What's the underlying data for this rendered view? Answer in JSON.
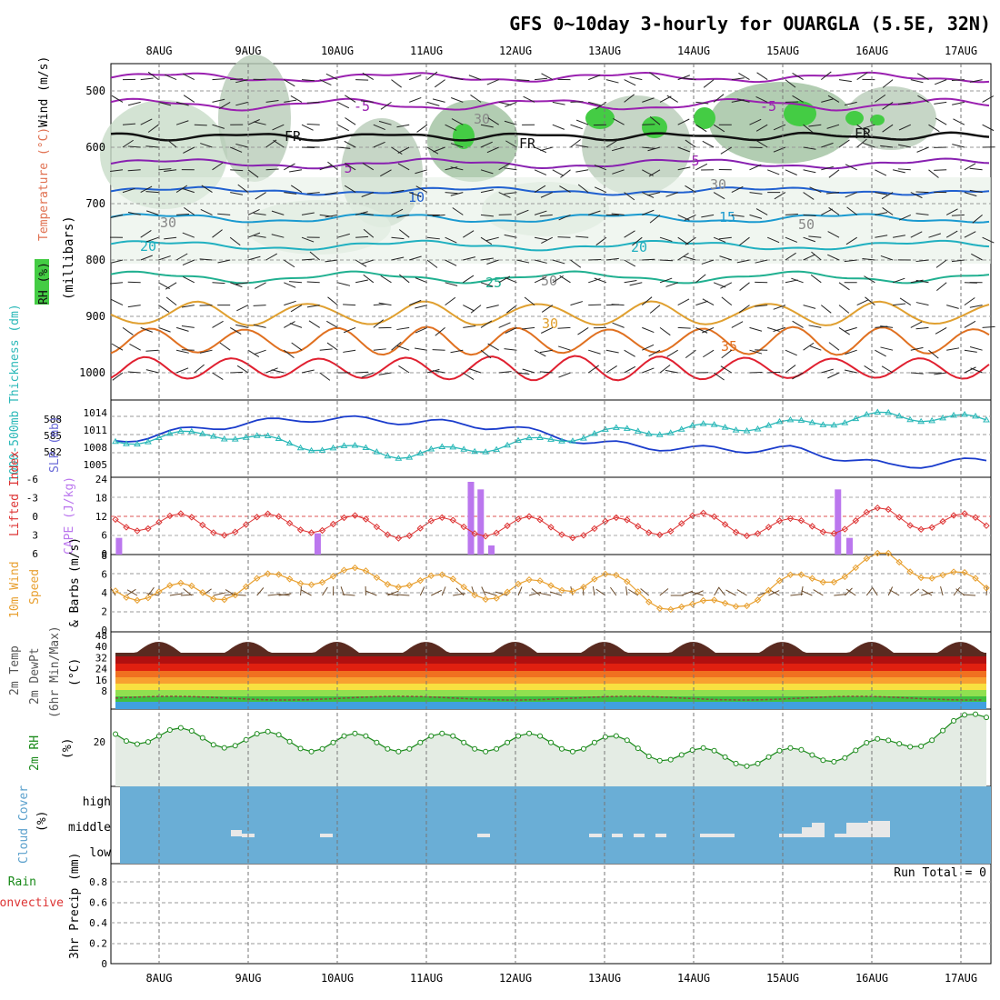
{
  "title": "GFS 0~10day 3-hourly for OUARGLA (5.5E, 32N)",
  "date_labels": [
    "8AUG",
    "9AUG",
    "10AUG",
    "11AUG",
    "12AUG",
    "13AUG",
    "14AUG",
    "15AUG",
    "16AUG",
    "17AUG"
  ],
  "panels": {
    "upper": {
      "label_rh": "RH (%)",
      "label_temp": "Temperature (°C)",
      "label_wind": "Wind (m/s)",
      "label_p": "(millibars)",
      "y_ticks": [
        "500",
        "600",
        "700",
        "800",
        "900",
        "1000"
      ],
      "contour_labels": [
        "-5",
        "-5",
        "5",
        "5",
        "10",
        "15",
        "20",
        "20",
        "25",
        "30",
        "35",
        "FR",
        "FR",
        "FR",
        "30",
        "30",
        "50",
        "50",
        "30"
      ]
    },
    "slp": {
      "label_thick": "1000-500mb Thickness (dm)",
      "label_slp": "SLP (mb)",
      "thick_ticks": [
        "588",
        "585",
        "582"
      ],
      "slp_ticks": [
        "1014",
        "1011",
        "1008",
        "1005"
      ]
    },
    "cape": {
      "label_li": "Lifted Index",
      "label_cape": "CAPE (J/kg)",
      "li_ticks": [
        "-6",
        "-3",
        "0",
        "3",
        "6"
      ],
      "cape_ticks": [
        "24",
        "18",
        "12",
        "6",
        "0"
      ]
    },
    "wind10": {
      "label_a": "10m Wind",
      "label_b": "Speed",
      "label_c": "& Barbs",
      "unit": "(m/s)",
      "ticks": [
        "8",
        "6",
        "4",
        "2",
        "0"
      ]
    },
    "temp2m": {
      "label_a": "2m Temp",
      "label_b": "2m DewPt",
      "label_c": "(6hr Min/Max)",
      "unit": "(°C)",
      "ticks": [
        "48",
        "40",
        "32",
        "24",
        "16",
        "8"
      ]
    },
    "rh2m": {
      "label": "2m RH",
      "unit": "(%)",
      "ticks": [
        "20"
      ]
    },
    "cloud": {
      "label": "Cloud Cover",
      "unit": "(%)",
      "levels": [
        "high",
        "middle",
        "low"
      ]
    },
    "precip": {
      "label_a": "Total / Rain",
      "label_b": "Convective",
      "label_c": "3hr Precip (mm)",
      "run_total": "Run Total = 0",
      "ticks": [
        "0.8",
        "0.6",
        "0.4",
        "0.2",
        "0"
      ]
    }
  },
  "colors": {
    "slp": "#1a3ccc",
    "thickness": "#2ab8b8",
    "lifted_index": "#dd3333",
    "cape": "#bb77ee",
    "wind10": "#e8a030",
    "rh2m": "#1a8a1a",
    "cloud_bg": "#6aaed6",
    "cloud_fill": "#e8e8e8"
  },
  "chart_data": [
    {
      "type": "line",
      "title": "SLP (mb)",
      "x": [
        "8AUG",
        "9AUG",
        "10AUG",
        "11AUG",
        "12AUG",
        "13AUG",
        "14AUG",
        "15AUG",
        "16AUG",
        "17AUG"
      ],
      "series": [
        {
          "name": "SLP (mb)",
          "values": [
            1009.5,
            1012,
            1013.5,
            1013,
            1012,
            1009,
            1008,
            1008,
            1005,
            1006
          ]
        },
        {
          "name": "1000-500mb Thickness (dm)",
          "values": [
            584.5,
            585.5,
            584,
            583,
            584,
            585.5,
            586,
            586.5,
            587.5,
            587
          ]
        }
      ]
    },
    {
      "type": "bar",
      "title": "CAPE (J/kg)",
      "x_positions": [
        7.55,
        9.78,
        11.5,
        11.61,
        11.73,
        15.62,
        15.75
      ],
      "values": [
        5.5,
        7,
        24,
        21.5,
        3,
        21.5,
        5.5
      ],
      "ylim": [
        0,
        24
      ]
    },
    {
      "type": "line",
      "title": "Lifted Index",
      "x": [
        "8AUG",
        "9AUG",
        "10AUG",
        "11AUG",
        "12AUG",
        "13AUG",
        "14AUG",
        "15AUG",
        "16AUG",
        "17AUG"
      ],
      "values": [
        1,
        3,
        2,
        4,
        3,
        4,
        2,
        4,
        0,
        3
      ],
      "ylim": [
        6,
        -6
      ]
    },
    {
      "type": "line",
      "title": "10m Wind Speed (m/s)",
      "x": [
        "8AUG",
        "9AUG",
        "10AUG",
        "11AUG",
        "12AUG",
        "13AUG",
        "14AUG",
        "15AUG",
        "16AUG",
        "17AUG"
      ],
      "values": [
        4.2,
        4,
        5.8,
        5.5,
        4,
        5.5,
        2,
        5,
        7.5,
        4.5
      ],
      "ylim": [
        0,
        8
      ]
    },
    {
      "type": "area",
      "title": "2m Temp (°C)",
      "x": [
        "8AUG",
        "9AUG",
        "10AUG",
        "11AUG",
        "12AUG",
        "13AUG",
        "14AUG",
        "15AUG",
        "16AUG",
        "17AUG"
      ],
      "series": [
        {
          "name": "2m Temp",
          "values": [
            39,
            42,
            42,
            42,
            42,
            42,
            42,
            43,
            45,
            42
          ]
        },
        {
          "name": "2m DewPt",
          "values": [
            9,
            8,
            7,
            8,
            8,
            7,
            6,
            6,
            7,
            9
          ]
        }
      ],
      "ylim": [
        0,
        48
      ]
    },
    {
      "type": "line",
      "title": "2m RH (%)",
      "x": [
        "8AUG",
        "9AUG",
        "10AUG",
        "11AUG",
        "12AUG",
        "13AUG",
        "14AUG",
        "15AUG",
        "16AUG",
        "17AUG"
      ],
      "values": [
        25,
        23,
        21,
        21,
        21,
        21,
        14,
        14,
        19,
        33
      ]
    },
    {
      "type": "bar",
      "title": "3hr Precip (mm)",
      "values": [],
      "ylim": [
        0,
        0.9
      ]
    }
  ]
}
